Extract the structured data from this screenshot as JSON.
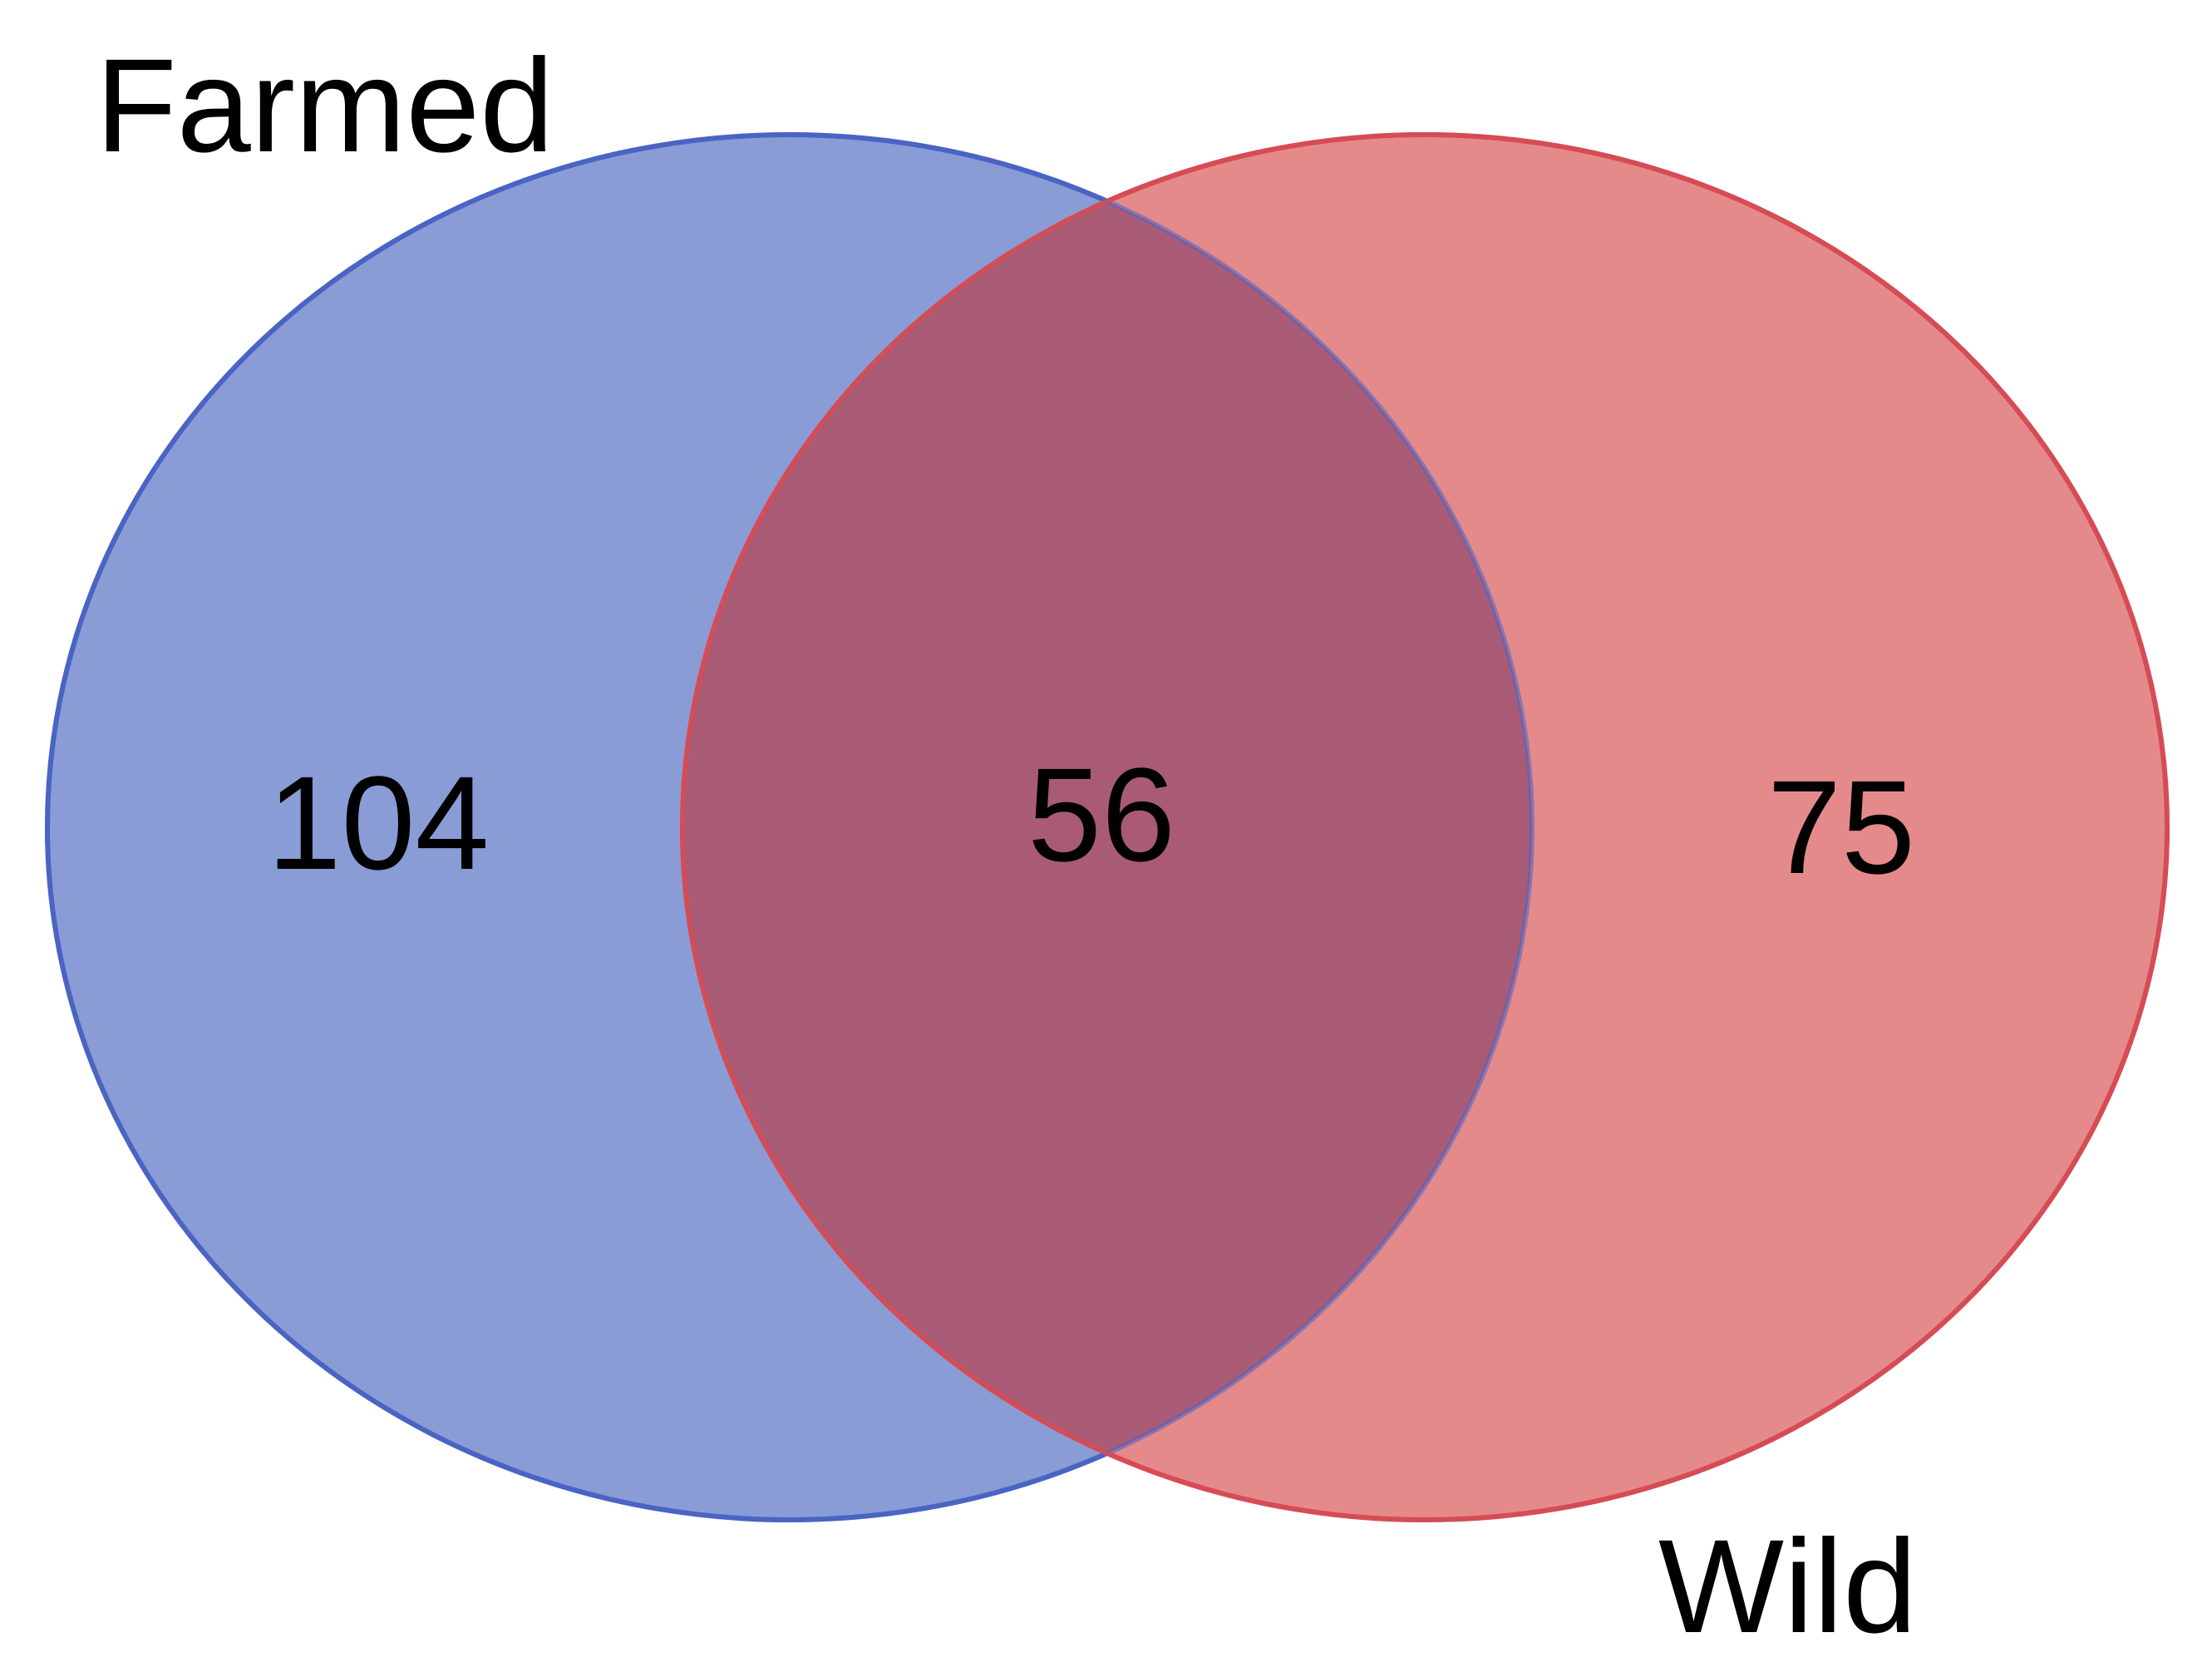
{
  "diagram": {
    "type": "venn",
    "sets": [
      {
        "key": "farmed",
        "label": "Farmed",
        "only_count": "104",
        "fill": "#8a9cd6",
        "stroke": "#4a64c4"
      },
      {
        "key": "wild",
        "label": "Wild",
        "only_count": "75",
        "fill": "#e58a8b",
        "stroke": "#d64c55"
      }
    ],
    "intersection": {
      "count": "56",
      "fill": "#a95b76"
    }
  }
}
